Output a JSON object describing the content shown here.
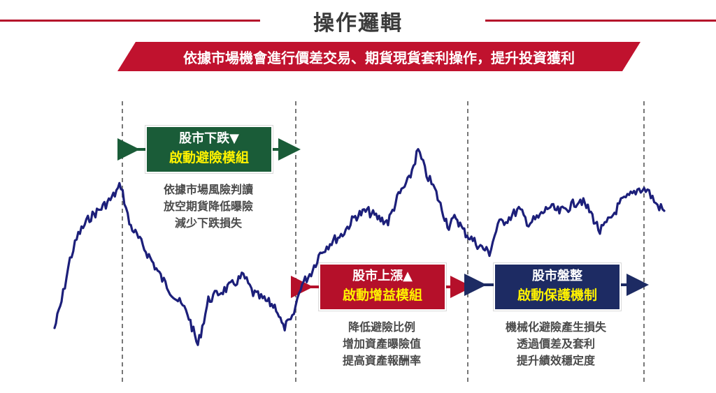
{
  "title": "操作邏輯",
  "banner": "依據市場機會進行價差交易、期貨現貨套利操作，提升投資獲利",
  "phases": [
    {
      "state": "股市下跌▼",
      "action": "啟動避險模組",
      "desc": [
        "依據市場風險判讀",
        "放空期貨降低曝險",
        "減少下跌損失"
      ]
    },
    {
      "state": "股市上漲▲",
      "action": "啟動增益模組",
      "desc": [
        "降低避險比例",
        "增加資產曝險值",
        "提高資產報酬率"
      ]
    },
    {
      "state": "股市盤整",
      "action": "啟動保護機制",
      "desc": [
        "機械化避險產生損失",
        "透過價差及套利",
        "提升績效穩定度"
      ]
    }
  ],
  "colors": {
    "accent_red": "#b5102a",
    "green": "#1a5c38",
    "navy": "#1d2b63",
    "line": "#1c1f7a",
    "highlight_text": "#fff200"
  },
  "icons": [
    "double-arrow-icon"
  ]
}
